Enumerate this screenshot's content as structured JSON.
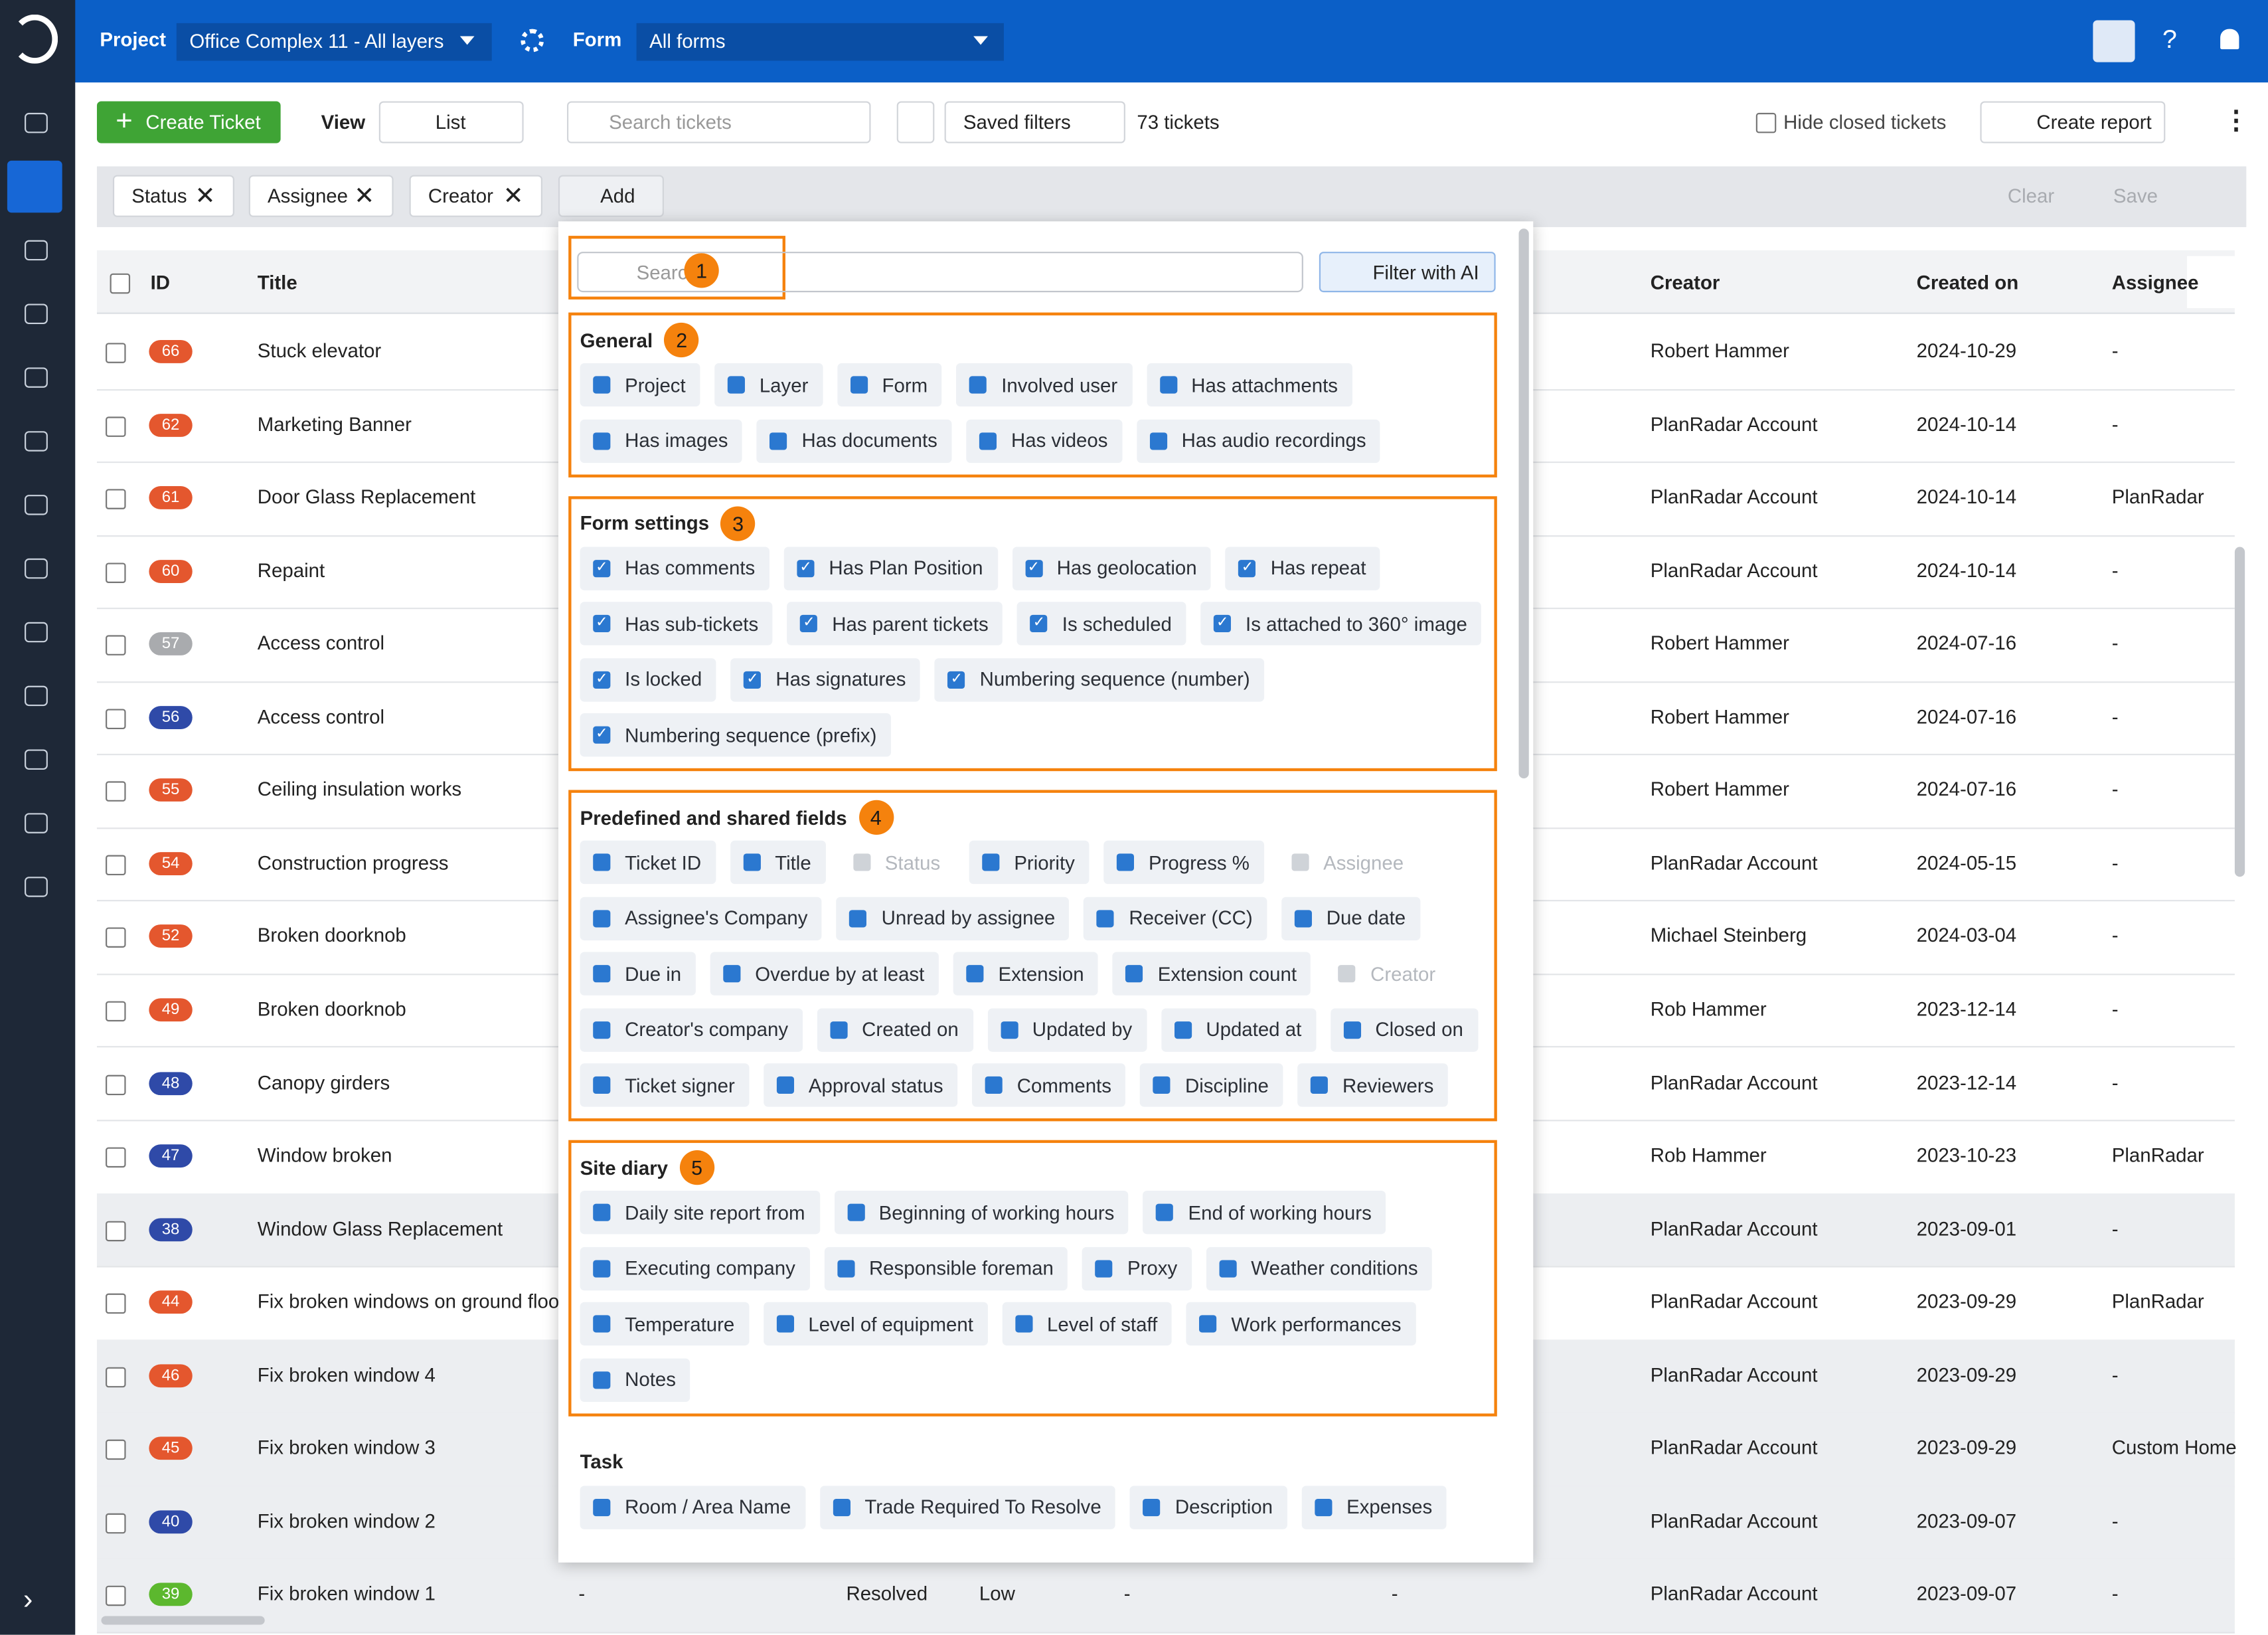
{
  "topbar": {
    "project_label": "Project",
    "project": "Office Complex 11 - All layers",
    "form_label": "Form",
    "form": "All forms"
  },
  "toolbar": {
    "create": "Create Ticket",
    "view_label": "View",
    "view": "List",
    "search": "Search tickets",
    "saved": "Saved filters",
    "count": "73 tickets",
    "hide": "Hide closed tickets",
    "report": "Create report"
  },
  "filters": {
    "chips": [
      "Status",
      "Assignee",
      "Creator"
    ],
    "add": "Add",
    "clear": "Clear",
    "save": "Save"
  },
  "table": {
    "headers": [
      "ID",
      "Title",
      "Creator",
      "Created on",
      "Assignee"
    ],
    "rows": [
      {
        "id": "66",
        "color": "#e4572e",
        "title": "Stuck elevator",
        "creator": "Robert Hammer",
        "created": "2024-10-29",
        "assignee": "-"
      },
      {
        "id": "62",
        "color": "#e4572e",
        "title": "Marketing Banner",
        "creator": "PlanRadar Account",
        "created": "2024-10-14",
        "assignee": "-"
      },
      {
        "id": "61",
        "color": "#e4572e",
        "title": "Door Glass Replacement",
        "creator": "PlanRadar Account",
        "created": "2024-10-14",
        "assignee": "PlanRadar"
      },
      {
        "id": "60",
        "color": "#e4572e",
        "title": "Repaint",
        "creator": "PlanRadar Account",
        "created": "2024-10-14",
        "assignee": "-"
      },
      {
        "id": "57",
        "color": "#a9abae",
        "title": "Access control",
        "creator": "Robert Hammer",
        "created": "2024-07-16",
        "assignee": "-"
      },
      {
        "id": "56",
        "color": "#2f4aa8",
        "title": "Access control",
        "creator": "Robert Hammer",
        "created": "2024-07-16",
        "assignee": "-"
      },
      {
        "id": "55",
        "color": "#e4572e",
        "title": "Ceiling insulation works",
        "creator": "Robert Hammer",
        "created": "2024-07-16",
        "assignee": "-"
      },
      {
        "id": "54",
        "color": "#e4572e",
        "title": "Construction progress",
        "creator": "PlanRadar Account",
        "created": "2024-05-15",
        "assignee": "-"
      },
      {
        "id": "52",
        "color": "#e4572e",
        "title": "Broken doorknob",
        "creator": "Michael Steinberg",
        "created": "2024-03-04",
        "assignee": "-"
      },
      {
        "id": "49",
        "color": "#e4572e",
        "title": "Broken doorknob",
        "creator": "Rob Hammer",
        "created": "2023-12-14",
        "assignee": "-"
      },
      {
        "id": "48",
        "color": "#2f4aa8",
        "title": "Canopy girders",
        "creator": "PlanRadar Account",
        "created": "2023-12-14",
        "assignee": "-"
      },
      {
        "id": "47",
        "color": "#2f4aa8",
        "title": "Window broken",
        "creator": "Rob Hammer",
        "created": "2023-10-23",
        "assignee": "PlanRadar"
      },
      {
        "id": "38",
        "color": "#2f4aa8",
        "title": "Window Glass Replacement",
        "creator": "PlanRadar Account",
        "created": "2023-09-01",
        "assignee": "-",
        "highlight": true
      },
      {
        "id": "44",
        "color": "#e4572e",
        "title": "Fix broken windows on ground floor",
        "creator": "PlanRadar Account",
        "created": "2023-09-29",
        "assignee": "PlanRadar"
      },
      {
        "id": "46",
        "color": "#e4572e",
        "title": "Fix broken window 4",
        "creator": "PlanRadar Account",
        "created": "2023-09-29",
        "assignee": "-",
        "highlight": true
      },
      {
        "id": "45",
        "color": "#e4572e",
        "title": "Fix broken window 3",
        "creator": "PlanRadar Account",
        "created": "2023-09-29",
        "assignee": "Custom Home",
        "highlight": true
      },
      {
        "id": "40",
        "color": "#2f4aa8",
        "title": "Fix broken window 2",
        "creator": "PlanRadar Account",
        "created": "2023-09-07",
        "assignee": "-",
        "highlight": true
      },
      {
        "id": "39",
        "color": "#5cb82e",
        "title": "Fix broken window 1",
        "creator": "PlanRadar Account",
        "created": "2023-09-07",
        "assignee": "-",
        "highlight": true,
        "middle": [
          "-",
          "Resolved",
          "Low",
          "-",
          "-"
        ]
      }
    ]
  },
  "popup": {
    "search": "Search",
    "search_badge": "1",
    "ai": "Filter with AI",
    "sections": [
      {
        "title": "General",
        "badge": "2",
        "items": [
          {
            "label": "Project"
          },
          {
            "label": "Layer"
          },
          {
            "label": "Form"
          },
          {
            "label": "Involved user"
          },
          {
            "label": "Has attachments"
          },
          {
            "label": "Has images"
          },
          {
            "label": "Has documents"
          },
          {
            "label": "Has videos"
          },
          {
            "label": "Has audio recordings"
          }
        ]
      },
      {
        "title": "Form settings",
        "badge": "3",
        "checkboxes": true,
        "items": [
          {
            "label": "Has comments"
          },
          {
            "label": "Has Plan Position"
          },
          {
            "label": "Has geolocation"
          },
          {
            "label": "Has repeat"
          },
          {
            "label": "Has sub-tickets"
          },
          {
            "label": "Has parent tickets"
          },
          {
            "label": "Is scheduled"
          },
          {
            "label": "Is attached to 360° image"
          },
          {
            "label": "Is locked"
          },
          {
            "label": "Has signatures"
          },
          {
            "label": "Numbering sequence (number)"
          },
          {
            "label": "Numbering sequence (prefix)"
          }
        ]
      },
      {
        "title": "Predefined and shared fields",
        "badge": "4",
        "items": [
          {
            "label": "Ticket ID"
          },
          {
            "label": "Title"
          },
          {
            "label": "Status",
            "disabled": true
          },
          {
            "label": "Priority"
          },
          {
            "label": "Progress %"
          },
          {
            "label": "Assignee",
            "disabled": true
          },
          {
            "label": "Assignee's Company"
          },
          {
            "label": "Unread by assignee"
          },
          {
            "label": "Receiver (CC)"
          },
          {
            "label": "Due date"
          },
          {
            "label": "Due in"
          },
          {
            "label": "Overdue by at least"
          },
          {
            "label": "Extension"
          },
          {
            "label": "Extension count"
          },
          {
            "label": "Creator",
            "disabled": true
          },
          {
            "label": "Creator's company"
          },
          {
            "label": "Created on"
          },
          {
            "label": "Updated by"
          },
          {
            "label": "Updated at"
          },
          {
            "label": "Closed on"
          },
          {
            "label": "Ticket signer"
          },
          {
            "label": "Approval status"
          },
          {
            "label": "Comments"
          },
          {
            "label": "Discipline"
          },
          {
            "label": "Reviewers"
          }
        ]
      },
      {
        "title": "Site diary",
        "badge": "5",
        "items": [
          {
            "label": "Daily site report from"
          },
          {
            "label": "Beginning of working hours"
          },
          {
            "label": "End of working hours"
          },
          {
            "label": "Executing company"
          },
          {
            "label": "Responsible foreman"
          },
          {
            "label": "Proxy"
          },
          {
            "label": "Weather conditions"
          },
          {
            "label": "Temperature"
          },
          {
            "label": "Level of equipment"
          },
          {
            "label": "Level of staff"
          },
          {
            "label": "Work performances"
          },
          {
            "label": "Notes"
          }
        ]
      },
      {
        "title": "Task",
        "items": [
          {
            "label": "Room / Area Name"
          },
          {
            "label": "Trade Required To Resolve"
          },
          {
            "label": "Description"
          },
          {
            "label": "Expenses"
          }
        ]
      }
    ]
  }
}
